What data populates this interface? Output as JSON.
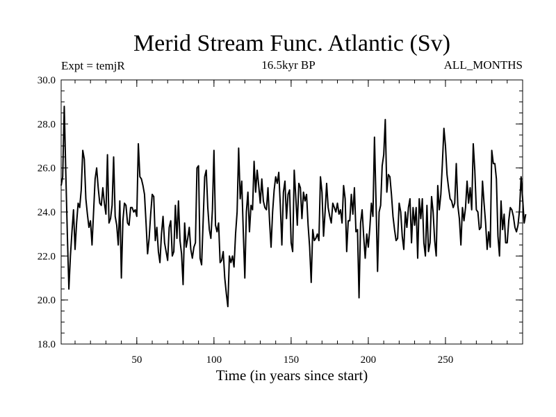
{
  "chart_data": {
    "type": "line",
    "title": "Merid Stream Func. Atlantic (Sv)",
    "subtitle_left": "Expt = temjR",
    "subtitle_center": "16.5kyr BP",
    "subtitle_right": "ALL_MONTHS",
    "xlabel": "Time (in years since start)",
    "ylabel": "",
    "xlim": [
      1,
      300
    ],
    "ylim": [
      18.0,
      30.0
    ],
    "xticks": [
      50,
      100,
      150,
      200,
      250
    ],
    "xtick_labels": [
      "50",
      "100",
      "150",
      "200",
      "250"
    ],
    "yticks": [
      18,
      20,
      22,
      24,
      26,
      28,
      30
    ],
    "ytick_labels": [
      "18.0",
      "20.0",
      "22.0",
      "24.0",
      "26.0",
      "28.0",
      "30.0"
    ],
    "series": [
      {
        "name": "Merid Stream Func. Atlantic",
        "x_start": 1,
        "x_step": 1,
        "values": [
          25.2,
          25.6,
          28.8,
          25.8,
          23.0,
          20.5,
          22.0,
          23.1,
          24.1,
          22.3,
          23.5,
          24.4,
          24.2,
          25.0,
          26.8,
          26.4,
          24.6,
          23.9,
          23.3,
          23.6,
          22.5,
          24.0,
          25.5,
          26.0,
          25.1,
          24.4,
          24.3,
          25.1,
          24.4,
          23.9,
          26.6,
          23.5,
          23.7,
          24.3,
          26.5,
          23.8,
          23.4,
          22.5,
          24.5,
          21.0,
          23.6,
          24.4,
          24.3,
          23.5,
          23.4,
          24.2,
          24.2,
          24.0,
          24.1,
          23.8,
          27.1,
          25.6,
          25.5,
          25.2,
          24.8,
          23.5,
          22.1,
          22.8,
          23.9,
          24.8,
          24.7,
          22.7,
          23.3,
          22.2,
          21.7,
          23.0,
          23.8,
          22.6,
          22.2,
          21.8,
          23.3,
          23.6,
          22.0,
          22.2,
          24.3,
          22.8,
          24.5,
          22.7,
          22.1,
          20.7,
          23.5,
          22.4,
          22.8,
          23.3,
          22.3,
          21.9,
          22.4,
          22.6,
          26.0,
          26.1,
          21.9,
          21.6,
          23.6,
          25.6,
          25.9,
          24.2,
          23.2,
          22.8,
          24.1,
          26.8,
          23.4,
          23.1,
          23.5,
          21.7,
          21.8,
          22.2,
          21.0,
          20.3,
          19.7,
          22.0,
          21.7,
          22.0,
          21.5,
          23.0,
          24.0,
          26.9,
          24.6,
          25.4,
          23.1,
          21.0,
          24.0,
          24.9,
          23.1,
          24.3,
          24.1,
          26.3,
          24.9,
          25.9,
          25.2,
          24.4,
          25.5,
          24.5,
          24.2,
          24.1,
          25.1,
          23.6,
          22.4,
          24.0,
          25.0,
          25.6,
          25.3,
          25.8,
          24.3,
          22.5,
          24.9,
          25.4,
          23.7,
          24.8,
          25.0,
          22.6,
          22.2,
          25.9,
          24.7,
          23.4,
          25.3,
          25.1,
          23.7,
          24.9,
          24.5,
          24.8,
          23.4,
          22.4,
          20.8,
          23.2,
          22.7,
          22.8,
          23.0,
          22.7,
          25.6,
          24.9,
          22.9,
          24.0,
          25.3,
          24.2,
          23.8,
          23.5,
          24.4,
          24.2,
          24.0,
          24.4,
          23.9,
          24.1,
          23.5,
          25.2,
          24.6,
          22.2,
          23.6,
          23.6,
          24.8,
          23.9,
          25.1,
          23.1,
          23.2,
          20.1,
          23.5,
          24.1,
          22.9,
          21.9,
          23.0,
          22.4,
          23.3,
          24.4,
          23.8,
          27.4,
          24.5,
          21.3,
          24.0,
          24.3,
          26.1,
          26.6,
          28.2,
          24.9,
          25.7,
          25.6,
          24.8,
          23.8,
          23.2,
          22.7,
          22.8,
          24.4,
          24.0,
          22.9,
          22.3,
          24.0,
          23.3,
          24.2,
          24.6,
          22.6,
          24.2,
          23.4,
          24.2,
          21.9,
          24.6,
          23.7,
          24.6,
          22.6,
          22.0,
          24.3,
          22.2,
          22.6,
          24.7,
          24.0,
          22.7,
          22.0,
          25.2,
          24.1,
          24.8,
          26.2,
          27.8,
          27.0,
          25.7,
          25.1,
          24.6,
          24.5,
          24.2,
          24.4,
          26.2,
          24.3,
          23.7,
          22.5,
          24.2,
          23.6,
          24.2,
          25.4,
          24.4,
          25.1,
          24.1,
          27.1,
          25.9,
          24.1,
          24.0,
          23.2,
          23.3,
          25.4,
          24.4,
          23.5,
          22.3,
          23.1,
          22.4,
          26.8,
          26.2,
          26.2,
          25.5,
          22.9,
          22.0,
          24.5,
          23.2,
          23.9,
          22.6,
          22.6,
          23.6,
          24.2,
          24.1,
          23.8,
          23.3,
          23.1,
          23.4,
          24.1,
          25.6,
          24.6,
          23.5,
          23.9
        ]
      }
    ]
  }
}
